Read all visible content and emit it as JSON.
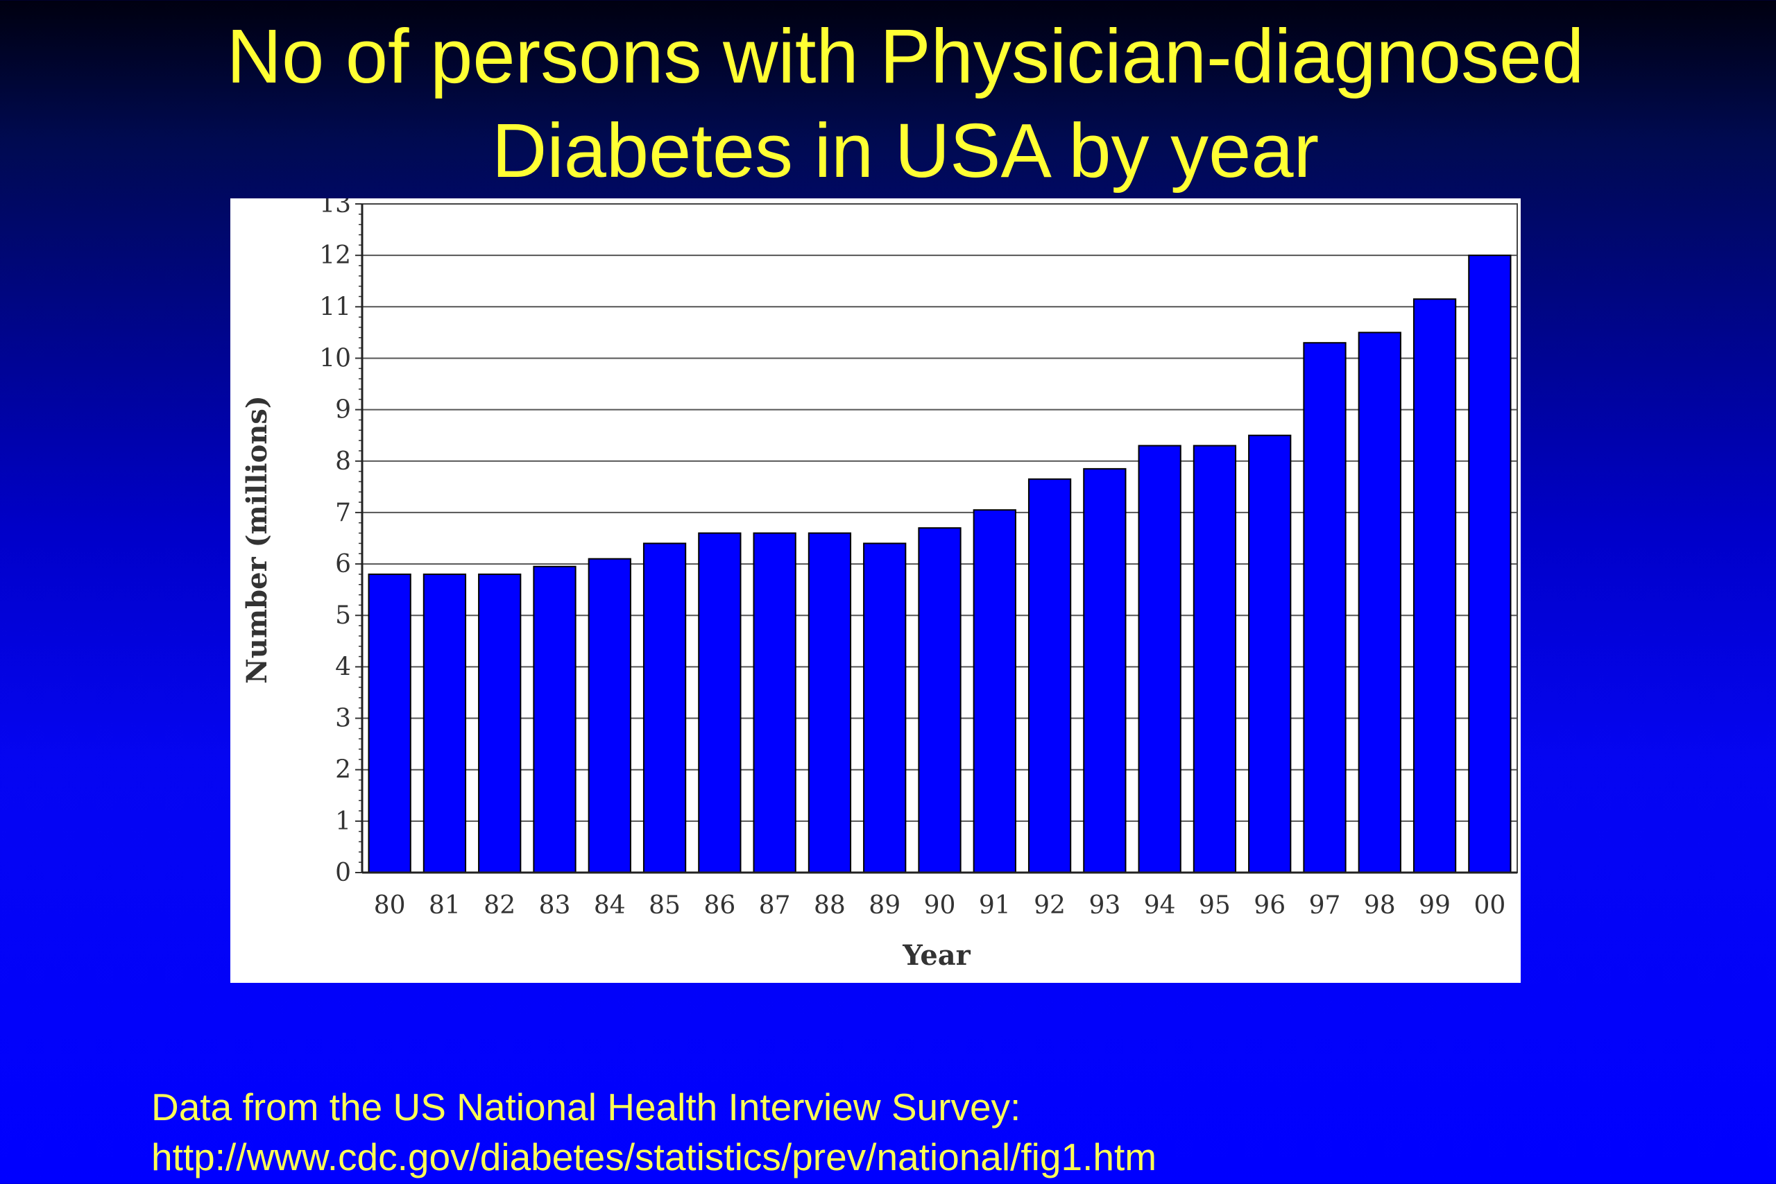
{
  "slide": {
    "title_line1": "No of persons with Physician-diagnosed",
    "title_line2": "Diabetes in USA by year",
    "source_line1": "Data from the US National Health Interview Survey:",
    "source_line2": "http://www.cdc.gov/diabetes/statistics/prev/national/fig1.htm"
  },
  "colors": {
    "bar": "#0000ff",
    "title": "#ffff33",
    "source": "#ffff55",
    "panel": "#ffffff"
  },
  "chart_data": {
    "type": "bar",
    "title": "",
    "xlabel": "Year",
    "ylabel": "Number (millions)",
    "categories": [
      "80",
      "81",
      "82",
      "83",
      "84",
      "85",
      "86",
      "87",
      "88",
      "89",
      "90",
      "91",
      "92",
      "93",
      "94",
      "95",
      "96",
      "97",
      "98",
      "99",
      "00"
    ],
    "values": [
      5.8,
      5.8,
      5.8,
      5.95,
      6.1,
      6.4,
      6.6,
      6.6,
      6.6,
      6.4,
      6.7,
      7.05,
      7.65,
      7.85,
      8.3,
      8.3,
      8.5,
      10.3,
      10.5,
      11.15,
      12.0
    ],
    "ylim": [
      0,
      13
    ],
    "yticks": [
      0,
      1,
      2,
      3,
      4,
      5,
      6,
      7,
      8,
      9,
      10,
      11,
      12,
      13
    ],
    "grid": true,
    "legend": "none"
  }
}
